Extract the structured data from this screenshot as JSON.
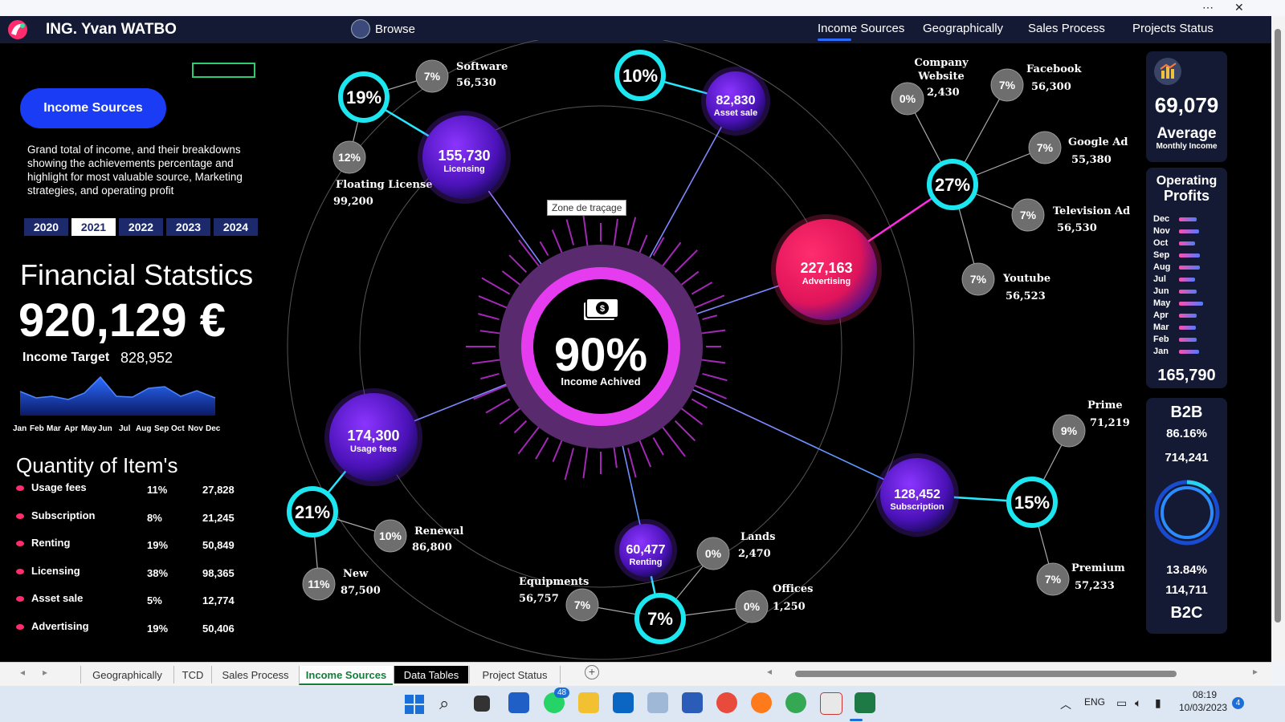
{
  "header": {
    "brand": "ING. Yvan WATBO",
    "browse": "Browse",
    "nav": [
      "Income Sources",
      "Geographically",
      "Sales Process",
      "Projects Status"
    ]
  },
  "left": {
    "button": "Income Sources",
    "description": "Grand total of income, and their breakdowns showing the achievements percentage and highlight for most valuable source, Marketing strategies, and operating profit",
    "years": [
      "2020",
      "2021",
      "2022",
      "2023",
      "2024"
    ],
    "active_year": "2021",
    "fin_title": "Financial Statstics",
    "total": "920,129 €",
    "target_label": "Income Target",
    "target_value": "828,952",
    "months": [
      "Jan",
      "Feb",
      "Mar",
      "Apr",
      "May",
      "Jun",
      "Jul",
      "Aug",
      "Sep",
      "Oct",
      "Nov",
      "Dec"
    ],
    "qty_title": "Quantity of Item's",
    "items": [
      {
        "name": "Usage fees",
        "pct": "11%",
        "val": "27,828"
      },
      {
        "name": "Subscription",
        "pct": "8%",
        "val": "21,245"
      },
      {
        "name": "Renting",
        "pct": "19%",
        "val": "50,849"
      },
      {
        "name": "Licensing",
        "pct": "38%",
        "val": "98,365"
      },
      {
        "name": "Asset sale",
        "pct": "5%",
        "val": "12,774"
      },
      {
        "name": "Advertising",
        "pct": "19%",
        "val": "50,406"
      }
    ]
  },
  "center": {
    "pct": "90%",
    "label": "Income Achived",
    "tooltip": "Zone de traçage"
  },
  "hubs": [
    {
      "value": "155,730",
      "label": "Licensing"
    },
    {
      "value": "82,830",
      "label": "Asset sale"
    },
    {
      "value": "227,163",
      "label": "Advertising"
    },
    {
      "value": "174,300",
      "label": "Usage fees"
    },
    {
      "value": "128,452",
      "label": "Subscription"
    },
    {
      "value": "60,477",
      "label": "Renting"
    }
  ],
  "rings": [
    "19%",
    "10%",
    "27%",
    "21%",
    "15%",
    "7%"
  ],
  "subs": [
    {
      "pct": "7%",
      "name": "Software",
      "val": "56,530"
    },
    {
      "pct": "12%",
      "name": "Floating License",
      "val": "99,200"
    },
    {
      "pct": "0%",
      "name": "Company Website",
      "val": "2,430"
    },
    {
      "pct": "7%",
      "name": "Facebook",
      "val": "56,300"
    },
    {
      "pct": "7%",
      "name": "Google Ad",
      "val": "55,380"
    },
    {
      "pct": "7%",
      "name": "Television Ad",
      "val": "56,530"
    },
    {
      "pct": "7%",
      "name": "Youtube",
      "val": "56,523"
    },
    {
      "pct": "10%",
      "name": "Renewal",
      "val": "86,800"
    },
    {
      "pct": "11%",
      "name": "New",
      "val": "87,500"
    },
    {
      "pct": "9%",
      "name": "Prime",
      "val": "71,219"
    },
    {
      "pct": "7%",
      "name": "Premium",
      "val": "57,233"
    },
    {
      "pct": "0%",
      "name": "Lands",
      "val": "2,470"
    },
    {
      "pct": "7%",
      "name": "Equipments",
      "val": "56,757"
    },
    {
      "pct": "0%",
      "name": "Offices",
      "val": "1,250"
    }
  ],
  "right": {
    "avg_value": "69,079",
    "avg_label": "Average",
    "avg_sub": "Monthly Income",
    "op_title_1": "Operating",
    "op_title_2": "Profits",
    "op_months": [
      "Dec",
      "Nov",
      "Oct",
      "Sep",
      "Aug",
      "Jul",
      "Jun",
      "May",
      "Apr",
      "Mar",
      "Feb",
      "Jan"
    ],
    "op_total": "165,790",
    "b2b": "B2B",
    "b2b_pct": "86.16%",
    "b2b_val": "714,241",
    "b2c_pct": "13.84%",
    "b2c_val": "114,711",
    "b2c": "B2C"
  },
  "sheet_tabs": [
    "Geographically",
    "TCD",
    "Sales Process",
    "Income Sources",
    "Data Tables",
    "Project Status"
  ],
  "tray": {
    "lang": "ENG",
    "time": "08:19",
    "date": "10/03/2023",
    "badge": "4",
    "whatsapp_badge": "48"
  },
  "colors": {
    "accent": "#1b3cf5",
    "ring": "#1ce6f0",
    "hub": "#6a1fd6",
    "advert": "#ff2d6e",
    "magenta": "#e63cf0"
  }
}
